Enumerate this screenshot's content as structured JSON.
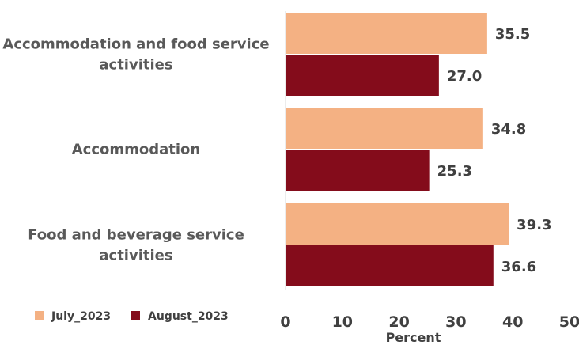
{
  "chart_data": {
    "type": "bar",
    "orientation": "horizontal",
    "categories": [
      "Accommodation and food service activities",
      "Accommodation",
      "Food and beverage service activities"
    ],
    "category_lines": [
      [
        "Accommodation and food service",
        "activities"
      ],
      [
        "Accommodation"
      ],
      [
        "Food and beverage service",
        "activities"
      ]
    ],
    "series": [
      {
        "name": "July_2023",
        "color": "#f4b183",
        "values": [
          35.5,
          34.8,
          39.3
        ],
        "labels": [
          "35.5",
          "34.8",
          "39.3"
        ]
      },
      {
        "name": "August_2023",
        "color": "#840c1b",
        "values": [
          27.0,
          25.3,
          36.6
        ],
        "labels": [
          "27.0",
          "25.3",
          "36.6"
        ]
      }
    ],
    "xlim": [
      0,
      50
    ],
    "xticks": [
      0,
      10,
      20,
      30,
      40,
      50
    ],
    "xlabel": "Percent",
    "ylabel": "",
    "title": "",
    "grid": false,
    "legend_position": "bottom-left"
  }
}
